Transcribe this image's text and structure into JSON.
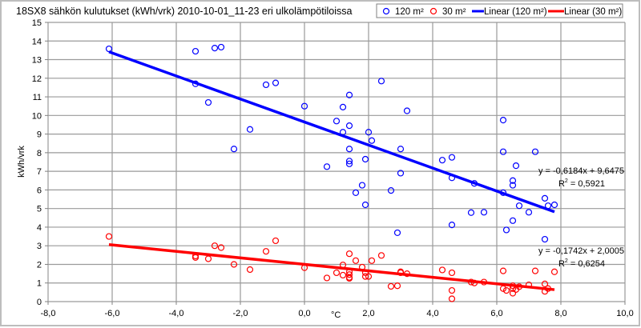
{
  "chart_data": {
    "type": "scatter",
    "title": "18SX8 sähkön kulutukset (kWh/vrk) 2010-10-01_11-23 eri ulkolämpötiloissa",
    "xlabel": "°C",
    "ylabel": "kWh/vrk",
    "xlim": [
      -8,
      10
    ],
    "ylim": [
      0,
      15
    ],
    "xticks": [
      -8,
      -6,
      -4,
      -2,
      0,
      2,
      4,
      6,
      8,
      10
    ],
    "xtick_labels": [
      "-8,0",
      "-6,0",
      "-4,0",
      "-2,0",
      "0,0",
      "2,0",
      "4,0",
      "6,0",
      "8,0",
      "10,0"
    ],
    "yticks": [
      0,
      1,
      2,
      3,
      4,
      5,
      6,
      7,
      8,
      9,
      10,
      11,
      12,
      13,
      14,
      15
    ],
    "ytick_labels": [
      "0",
      "1",
      "2",
      "3",
      "4",
      "5",
      "6",
      "7",
      "8",
      "9",
      "10",
      "11",
      "12",
      "13",
      "14",
      "15"
    ],
    "grid": true,
    "legend_placement": "top-right",
    "legend": [
      "120 m²",
      "30 m²",
      "Linear (120 m²)",
      "Linear (30 m²)"
    ],
    "series": [
      {
        "name": "120 m²",
        "color": "#0000ff",
        "marker": "open-circle",
        "points": [
          [
            -6.1,
            13.58
          ],
          [
            -3.4,
            13.45
          ],
          [
            -2.8,
            13.62
          ],
          [
            -2.6,
            13.67
          ],
          [
            -3.4,
            11.7
          ],
          [
            -3.0,
            10.7
          ],
          [
            -2.2,
            8.2
          ],
          [
            -1.7,
            9.25
          ],
          [
            -1.2,
            11.65
          ],
          [
            -0.9,
            11.75
          ],
          [
            0.0,
            10.5
          ],
          [
            0.7,
            7.25
          ],
          [
            1.0,
            9.7
          ],
          [
            1.2,
            10.45
          ],
          [
            1.4,
            11.1
          ],
          [
            1.4,
            9.45
          ],
          [
            1.4,
            8.2
          ],
          [
            1.4,
            7.55
          ],
          [
            1.4,
            7.4
          ],
          [
            1.2,
            9.1
          ],
          [
            1.6,
            5.85
          ],
          [
            1.8,
            6.25
          ],
          [
            1.9,
            7.65
          ],
          [
            2.0,
            9.1
          ],
          [
            2.1,
            8.65
          ],
          [
            2.4,
            11.85
          ],
          [
            2.7,
            5.97
          ],
          [
            2.9,
            3.7
          ],
          [
            3.0,
            8.2
          ],
          [
            3.0,
            6.9
          ],
          [
            3.2,
            10.25
          ],
          [
            1.9,
            5.2
          ],
          [
            4.3,
            7.6
          ],
          [
            4.6,
            7.75
          ],
          [
            4.6,
            6.65
          ],
          [
            4.6,
            4.12
          ],
          [
            5.2,
            4.78
          ],
          [
            5.3,
            6.35
          ],
          [
            5.6,
            4.8
          ],
          [
            6.2,
            9.75
          ],
          [
            6.2,
            8.05
          ],
          [
            6.2,
            5.85
          ],
          [
            6.3,
            3.85
          ],
          [
            6.5,
            6.5
          ],
          [
            6.5,
            6.25
          ],
          [
            6.5,
            4.35
          ],
          [
            6.6,
            7.3
          ],
          [
            6.7,
            5.15
          ],
          [
            7.0,
            4.8
          ],
          [
            7.2,
            8.05
          ],
          [
            7.5,
            5.55
          ],
          [
            7.5,
            3.35
          ],
          [
            7.6,
            5.15
          ],
          [
            7.8,
            5.2
          ]
        ]
      },
      {
        "name": "30 m²",
        "color": "#ff0000",
        "marker": "open-circle",
        "points": [
          [
            -6.1,
            3.5
          ],
          [
            -3.4,
            2.45
          ],
          [
            -3.4,
            2.37
          ],
          [
            -3.0,
            2.3
          ],
          [
            -2.8,
            3.0
          ],
          [
            -2.6,
            2.9
          ],
          [
            -2.2,
            2.0
          ],
          [
            -1.7,
            1.72
          ],
          [
            -1.2,
            2.7
          ],
          [
            -0.9,
            3.27
          ],
          [
            0.0,
            1.82
          ],
          [
            0.7,
            1.27
          ],
          [
            1.0,
            1.55
          ],
          [
            1.2,
            1.97
          ],
          [
            1.2,
            1.42
          ],
          [
            1.4,
            2.57
          ],
          [
            1.4,
            1.6
          ],
          [
            1.4,
            1.45
          ],
          [
            1.4,
            1.3
          ],
          [
            1.4,
            1.25
          ],
          [
            1.6,
            2.2
          ],
          [
            1.8,
            1.85
          ],
          [
            1.9,
            1.55
          ],
          [
            1.9,
            1.35
          ],
          [
            2.0,
            1.35
          ],
          [
            2.1,
            2.2
          ],
          [
            2.4,
            2.48
          ],
          [
            2.7,
            0.82
          ],
          [
            2.9,
            0.85
          ],
          [
            3.0,
            1.6
          ],
          [
            3.0,
            1.55
          ],
          [
            3.2,
            1.5
          ],
          [
            4.3,
            1.7
          ],
          [
            4.6,
            1.55
          ],
          [
            4.6,
            0.6
          ],
          [
            4.6,
            0.15
          ],
          [
            5.2,
            1.05
          ],
          [
            5.3,
            1.0
          ],
          [
            5.6,
            1.05
          ],
          [
            6.2,
            1.65
          ],
          [
            6.2,
            0.7
          ],
          [
            6.3,
            0.6
          ],
          [
            6.5,
            0.85
          ],
          [
            6.5,
            0.7
          ],
          [
            6.5,
            0.45
          ],
          [
            6.6,
            0.65
          ],
          [
            6.7,
            0.8
          ],
          [
            7.0,
            0.9
          ],
          [
            7.2,
            1.65
          ],
          [
            7.5,
            0.95
          ],
          [
            7.5,
            0.55
          ],
          [
            7.6,
            0.7
          ],
          [
            7.8,
            1.6
          ]
        ]
      }
    ],
    "trendlines": [
      {
        "name": "Linear (120 m²)",
        "color": "#0000ff",
        "slope": -0.6184,
        "intercept": 9.6475,
        "x_range": [
          -6.1,
          7.8
        ],
        "equation": "y = -0,6184x + 9,6475",
        "r2_label": "R",
        "r2_value": " = 0,5921"
      },
      {
        "name": "Linear (30 m²)",
        "color": "#ff0000",
        "slope": -0.1742,
        "intercept": 2.0005,
        "x_range": [
          -6.1,
          7.8
        ],
        "equation": "y = -0,1742x + 2,0005",
        "r2_label": "R",
        "r2_value": " = 0,6254"
      }
    ]
  }
}
